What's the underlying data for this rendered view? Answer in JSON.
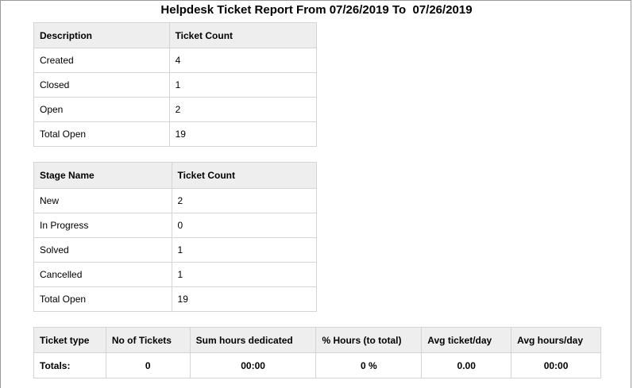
{
  "report": {
    "title": "Helpdesk Ticket Report From 07/26/2019 To  07/26/2019"
  },
  "summary_table": {
    "headers": [
      "Description",
      "Ticket Count"
    ],
    "rows": [
      [
        "Created",
        "4"
      ],
      [
        "Closed",
        "1"
      ],
      [
        "Open",
        "2"
      ],
      [
        "Total Open",
        "19"
      ]
    ]
  },
  "stage_table": {
    "headers": [
      "Stage Name",
      "Ticket Count"
    ],
    "rows": [
      [
        "New",
        "2"
      ],
      [
        "In Progress",
        "0"
      ],
      [
        "Solved",
        "1"
      ],
      [
        "Cancelled",
        "1"
      ],
      [
        "Total Open",
        "19"
      ]
    ]
  },
  "type_table": {
    "headers": [
      "Ticket type",
      "No of Tickets",
      "Sum hours dedicated",
      "% Hours (to total)",
      "Avg ticket/day",
      "Avg hours/day"
    ],
    "totals": [
      "Totals:",
      "0",
      "00:00",
      "0 %",
      "0.00",
      "00:00"
    ]
  }
}
